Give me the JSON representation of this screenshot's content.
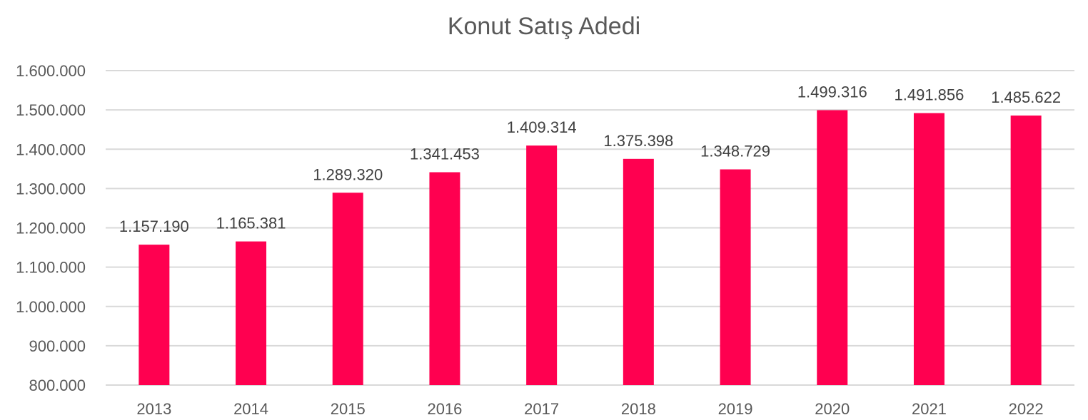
{
  "chart_data": {
    "type": "bar",
    "title": "Konut Satış Adedi",
    "xlabel": "",
    "ylabel": "",
    "categories": [
      "2013",
      "2014",
      "2015",
      "2016",
      "2017",
      "2018",
      "2019",
      "2020",
      "2021",
      "2022"
    ],
    "values": [
      1157190,
      1165381,
      1289320,
      1341453,
      1409314,
      1375398,
      1348729,
      1499316,
      1491856,
      1485622
    ],
    "data_labels": [
      "1.157.190",
      "1.165.381",
      "1.289.320",
      "1.341.453",
      "1.409.314",
      "1.375.398",
      "1.348.729",
      "1.499.316",
      "1.491.856",
      "1.485.622"
    ],
    "ylim": [
      800000,
      1600000
    ],
    "yticks": [
      800000,
      900000,
      1000000,
      1100000,
      1200000,
      1300000,
      1400000,
      1500000,
      1600000
    ],
    "ytick_labels": [
      "800.000",
      "900.000",
      "1.000.000",
      "1.100.000",
      "1.200.000",
      "1.300.000",
      "1.400.000",
      "1.500.000",
      "1.600.000"
    ],
    "grid": true,
    "legend": "none",
    "bar_color": "#ff0050",
    "grid_color": "#d9d9d9",
    "text_color": "#595959",
    "label_color": "#404040"
  }
}
